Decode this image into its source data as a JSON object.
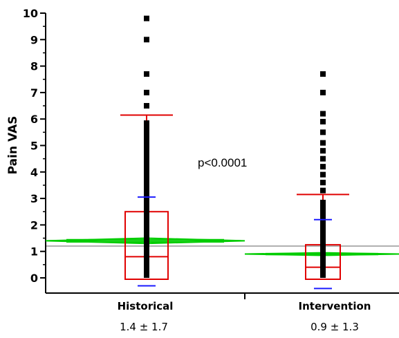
{
  "chart_data": {
    "type": "box",
    "ylabel": "Pain VAS",
    "xlabel": "",
    "ylim": [
      -0.5,
      10
    ],
    "yticks": [
      0,
      1,
      2,
      3,
      4,
      5,
      6,
      7,
      8,
      9,
      10
    ],
    "categories": [
      "Historical",
      "Intervention"
    ],
    "category_subtitles": [
      "1.4 ± 1.7",
      "0.9 ± 1.3"
    ],
    "annotation": "p<0.0001",
    "reference_line": 1.2,
    "groups": [
      {
        "name": "Historical",
        "mean": 1.4,
        "sd": 1.7,
        "q1": 0,
        "median": 0.8,
        "q3": 2.5,
        "whisker_low": 0,
        "whisker_high": 6.15,
        "mean_minus_sd": -0.3,
        "mean_plus_sd": 3.05,
        "ci_low": 1.3,
        "ci_high": 1.5,
        "outliers": [
          6.5,
          7.0,
          7.7,
          9.0,
          9.8
        ]
      },
      {
        "name": "Intervention",
        "mean": 0.9,
        "sd": 1.3,
        "q1": 0,
        "median": 0.4,
        "q3": 1.25,
        "whisker_low": 0,
        "whisker_high": 3.15,
        "mean_minus_sd": -0.4,
        "mean_plus_sd": 2.2,
        "ci_low": 0.85,
        "ci_high": 0.95,
        "outliers": [
          3.3,
          3.6,
          3.9,
          4.2,
          4.5,
          4.8,
          5.1,
          5.5,
          5.9,
          6.2,
          7.0,
          7.7
        ]
      }
    ],
    "colors": {
      "box": "#e00000",
      "sd_ticks": "#1a1aff",
      "diamond": "#00cc00",
      "reference": "#b0b0b0",
      "points": "#000000"
    }
  }
}
